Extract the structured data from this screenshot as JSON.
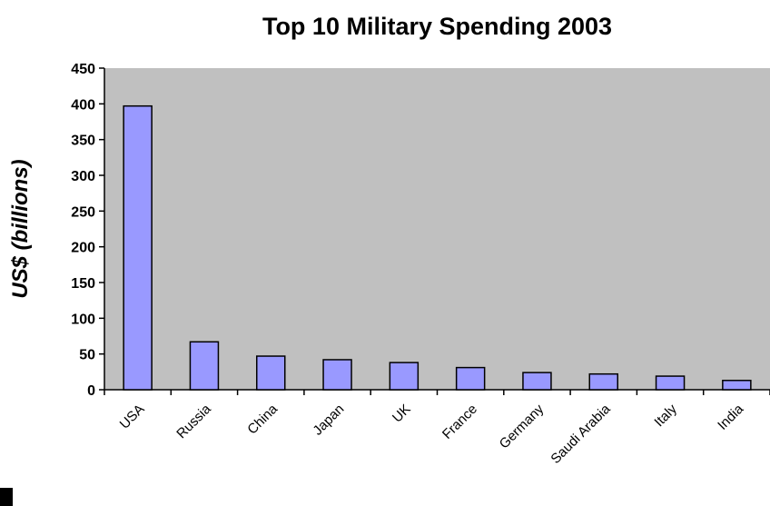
{
  "chart_data": {
    "type": "bar",
    "title": "Top 10 Military Spending 2003",
    "xlabel": "",
    "ylabel": "US$ (billions)",
    "categories": [
      "USA",
      "Russia",
      "China",
      "Japan",
      "UK",
      "France",
      "Germany",
      "Saudi Arabia",
      "Italy",
      "India"
    ],
    "values": [
      397,
      67,
      47,
      42,
      38,
      31,
      24,
      22,
      19,
      13
    ],
    "ylim": [
      0,
      450
    ],
    "yticks": [
      0,
      50,
      100,
      150,
      200,
      250,
      300,
      350,
      400,
      450
    ],
    "grid": false,
    "legend": "none",
    "colors": {
      "plot_background": "#c0c0c0",
      "bar_fill": "#9999ff",
      "bar_stroke": "#000000"
    }
  }
}
